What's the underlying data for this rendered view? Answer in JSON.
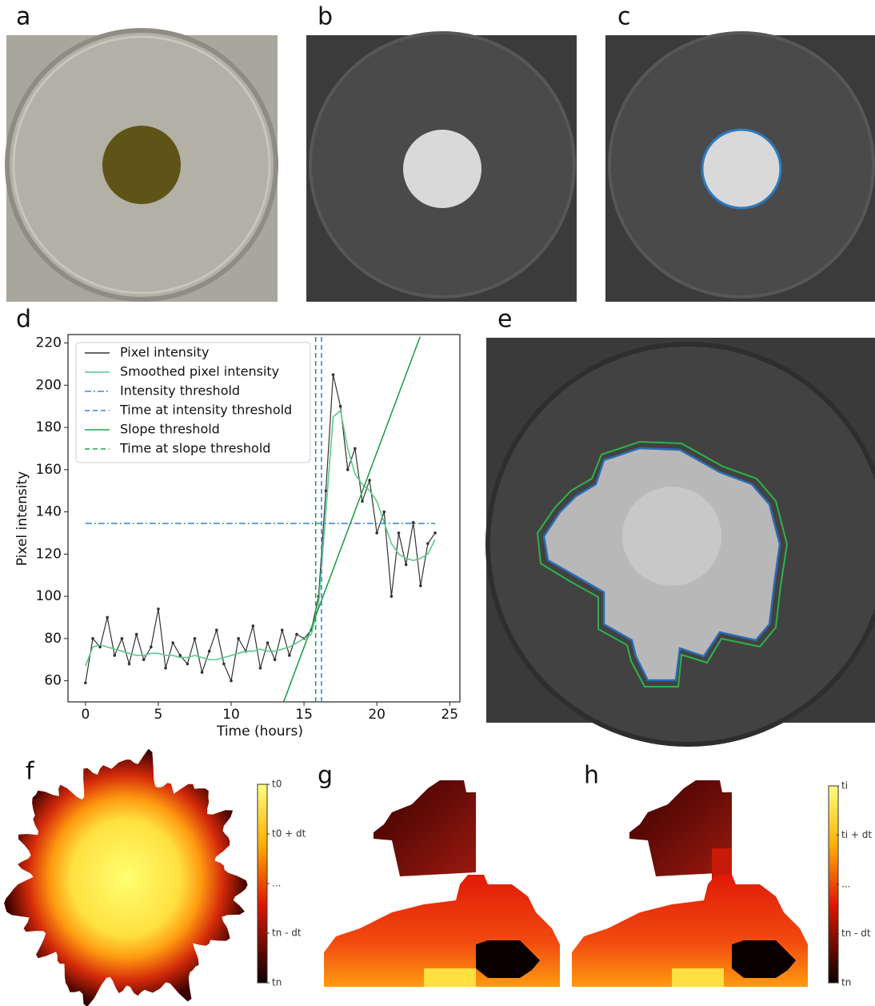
{
  "panel_labels": [
    "a",
    "b",
    "c",
    "d",
    "e",
    "f",
    "g",
    "h"
  ],
  "chart_data": {
    "type": "line",
    "xlabel": "Time (hours)",
    "ylabel": "Pixel intensity",
    "xlim": [
      -1.2,
      25.7
    ],
    "ylim": [
      50,
      224
    ],
    "xticks": [
      0,
      5,
      10,
      15,
      20,
      25
    ],
    "yticks": [
      60,
      80,
      100,
      120,
      140,
      160,
      180,
      200,
      220
    ],
    "legend": "upper left",
    "series": [
      {
        "name": "Pixel intensity",
        "color": "#333333",
        "style": "solid",
        "markers": true,
        "x": [
          0,
          0.5,
          1,
          1.5,
          2,
          2.5,
          3,
          3.5,
          4,
          4.5,
          5,
          5.5,
          6,
          6.5,
          7,
          7.5,
          8,
          8.5,
          9,
          9.5,
          10,
          10.5,
          11,
          11.5,
          12,
          12.5,
          13,
          13.5,
          14,
          14.5,
          15,
          15.5,
          16,
          16.5,
          17,
          17.5,
          18,
          18.5,
          19,
          19.5,
          20,
          20.5,
          21,
          21.5,
          22,
          22.5,
          23,
          23.5,
          24
        ],
        "values": [
          59,
          80,
          76,
          90,
          72,
          80,
          68,
          82,
          70,
          76,
          94,
          66,
          78,
          72,
          68,
          80,
          64,
          74,
          84,
          68,
          60,
          80,
          74,
          86,
          66,
          78,
          70,
          84,
          72,
          82,
          80,
          84,
          100,
          150,
          205,
          190,
          160,
          170,
          145,
          155,
          130,
          140,
          100,
          130,
          115,
          135,
          105,
          125,
          130
        ]
      },
      {
        "name": "Smoothed pixel intensity",
        "color": "#5cc98a",
        "style": "solid",
        "markers": false,
        "x": [
          0,
          0.5,
          1,
          1.5,
          2,
          2.5,
          3,
          3.5,
          4,
          4.5,
          5,
          5.5,
          6,
          6.5,
          7,
          7.5,
          8,
          8.5,
          9,
          9.5,
          10,
          10.5,
          11,
          11.5,
          12,
          12.5,
          13,
          13.5,
          14,
          14.5,
          15,
          15.5,
          16,
          16.5,
          17,
          17.5,
          18,
          18.5,
          19,
          19.5,
          20,
          20.5,
          21,
          21.5,
          22,
          22.5,
          23,
          23.5,
          24
        ],
        "values": [
          67,
          76,
          77,
          76,
          75,
          74,
          73,
          72,
          72,
          73,
          73,
          72,
          72,
          71,
          71,
          72,
          71,
          70,
          70,
          71,
          72,
          73,
          74,
          74,
          75,
          74,
          74,
          75,
          76,
          78,
          80,
          82,
          96,
          140,
          185,
          188,
          170,
          158,
          153,
          150,
          145,
          135,
          125,
          120,
          118,
          117,
          118,
          120,
          127
        ]
      },
      {
        "name": "Intensity threshold",
        "color": "#4a8cc7",
        "style": "dashdot",
        "markers": false,
        "x": [
          0,
          24
        ],
        "values": [
          134.5,
          134.5
        ]
      },
      {
        "name": "Time at intensity threshold",
        "color": "#3a86d0",
        "style": "dashed",
        "markers": false,
        "x": [
          16.2,
          16.2
        ],
        "values": [
          50,
          224
        ]
      },
      {
        "name": "Slope threshold",
        "color": "#22a04b",
        "style": "solid",
        "markers": false,
        "x": [
          13.6,
          22.97
        ],
        "values": [
          50,
          223
        ]
      },
      {
        "name": "Time at slope threshold",
        "color": "#22a04b",
        "style": "dashed",
        "markers": false,
        "x": [
          15.8,
          15.8
        ],
        "values": [
          50,
          224
        ]
      }
    ]
  },
  "colorbar_f": [
    "t0",
    "t0 + dt",
    "...",
    "tn - dt",
    "tn"
  ],
  "colorbar_h": [
    "ti",
    "ti + dt",
    "...",
    "tn - dt",
    "tn"
  ]
}
